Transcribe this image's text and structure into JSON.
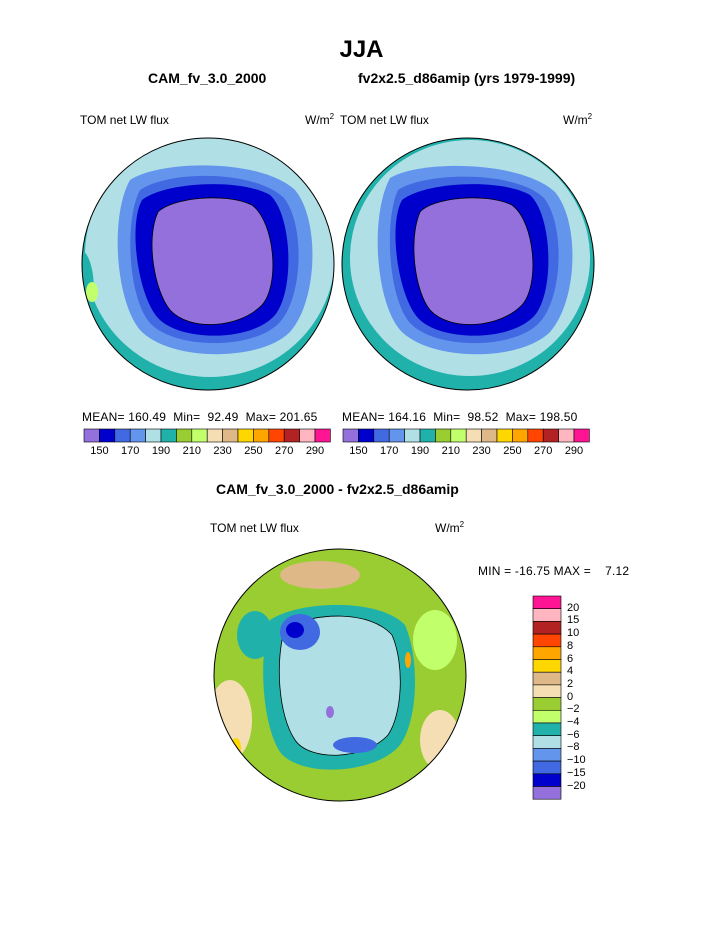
{
  "figure": {
    "season": "JJA",
    "left_title": "CAM_fv_3.0_2000",
    "right_title": "fv2x2.5_d86amip (yrs 1979-1999)",
    "diff_title": "CAM_fv_3.0_2000 - fv2x2.5_d86amip"
  },
  "panels": {
    "left": {
      "variable": "TOM net LW flux",
      "units_base": "W/m",
      "units_exp": "2",
      "mean_label": "MEAN=",
      "mean": "160.49",
      "min_label": "Min=",
      "min": "92.49",
      "max_label": "Max=",
      "max": "201.65"
    },
    "right": {
      "variable": "TOM net LW flux",
      "units_base": "W/m",
      "units_exp": "2",
      "mean_label": "MEAN=",
      "mean": "164.16",
      "min_label": "Min=",
      "min": "98.52",
      "max_label": "Max=",
      "max": "198.50"
    },
    "diff": {
      "variable": "TOM net LW flux",
      "units_base": "W/m",
      "units_exp": "2",
      "stats": "MIN = -16.75 MAX =    7.12"
    }
  },
  "colorbars": {
    "main": {
      "colors": [
        "#9370db",
        "#0000cd",
        "#4169e1",
        "#6495ed",
        "#b0e0e6",
        "#20b2aa",
        "#9acd32",
        "#c1ff6b",
        "#f5deb3",
        "#deb887",
        "#ffd700",
        "#ffa500",
        "#ff4500",
        "#b22222",
        "#ffb6c1",
        "#ff1493"
      ],
      "labels": [
        "150",
        "170",
        "190",
        "210",
        "230",
        "250",
        "270",
        "290"
      ]
    },
    "diff": {
      "colors": [
        "#ff1493",
        "#ffb6c1",
        "#b22222",
        "#ff4500",
        "#ffa500",
        "#ffd700",
        "#deb887",
        "#f5deb3",
        "#9acd32",
        "#c1ff6b",
        "#20b2aa",
        "#b0e0e6",
        "#6495ed",
        "#4169e1",
        "#0000cd",
        "#9370db"
      ],
      "labels": [
        "20",
        "15",
        "10",
        "8",
        "6",
        "4",
        "2",
        "0",
        "−2",
        "−4",
        "−6",
        "−8",
        "−10",
        "−15",
        "−20"
      ]
    }
  },
  "palette": {
    "ice": "#9370db",
    "deep_blue": "#0000cd",
    "royal_blue": "#4169e1",
    "corn_blue": "#6495ed",
    "powder": "#b0e0e6",
    "teal": "#20b2aa",
    "yellowgreen": "#9acd32",
    "lightgreen": "#c1ff6b",
    "wheat": "#f5deb3",
    "tan": "#deb887",
    "gold": "#ffd700",
    "orange": "#ffa500"
  }
}
